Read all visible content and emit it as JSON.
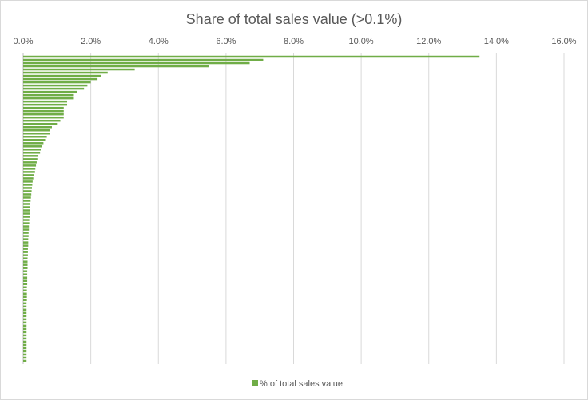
{
  "chart_data": {
    "type": "bar",
    "orientation": "horizontal",
    "title": "Share of total sales value (>0.1%)",
    "xlabel": "",
    "ylabel": "",
    "xlim": [
      0,
      16
    ],
    "x_ticks": [
      "0.0%",
      "2.0%",
      "4.0%",
      "6.0%",
      "8.0%",
      "10.0%",
      "12.0%",
      "14.0%",
      "16.0%"
    ],
    "x_axis_position": "top",
    "grid": "vertical major gridlines",
    "legend_position": "bottom",
    "colors": {
      "bar": "#70ad47",
      "grid": "#d9d9d9",
      "axis_text": "#595959"
    },
    "series": [
      {
        "name": "% of total sales value",
        "values": [
          13.5,
          7.1,
          6.7,
          5.5,
          3.3,
          2.5,
          2.3,
          2.2,
          2.0,
          1.9,
          1.8,
          1.6,
          1.5,
          1.5,
          1.3,
          1.3,
          1.2,
          1.2,
          1.2,
          1.2,
          1.1,
          1.0,
          0.85,
          0.8,
          0.78,
          0.7,
          0.65,
          0.6,
          0.55,
          0.52,
          0.5,
          0.45,
          0.42,
          0.4,
          0.38,
          0.36,
          0.35,
          0.33,
          0.3,
          0.28,
          0.27,
          0.26,
          0.25,
          0.24,
          0.23,
          0.22,
          0.21,
          0.2,
          0.2,
          0.19,
          0.19,
          0.18,
          0.18,
          0.17,
          0.17,
          0.16,
          0.16,
          0.15,
          0.15,
          0.15,
          0.14,
          0.14,
          0.14,
          0.13,
          0.13,
          0.13,
          0.13,
          0.12,
          0.12,
          0.12,
          0.12,
          0.12,
          0.11,
          0.11,
          0.11,
          0.11,
          0.11,
          0.1,
          0.1,
          0.1,
          0.1,
          0.1,
          0.1,
          0.1,
          0.1,
          0.1,
          0.1,
          0.1,
          0.1,
          0.1,
          0.1,
          0.1,
          0.1,
          0.1,
          0.1,
          0.1
        ]
      }
    ]
  }
}
